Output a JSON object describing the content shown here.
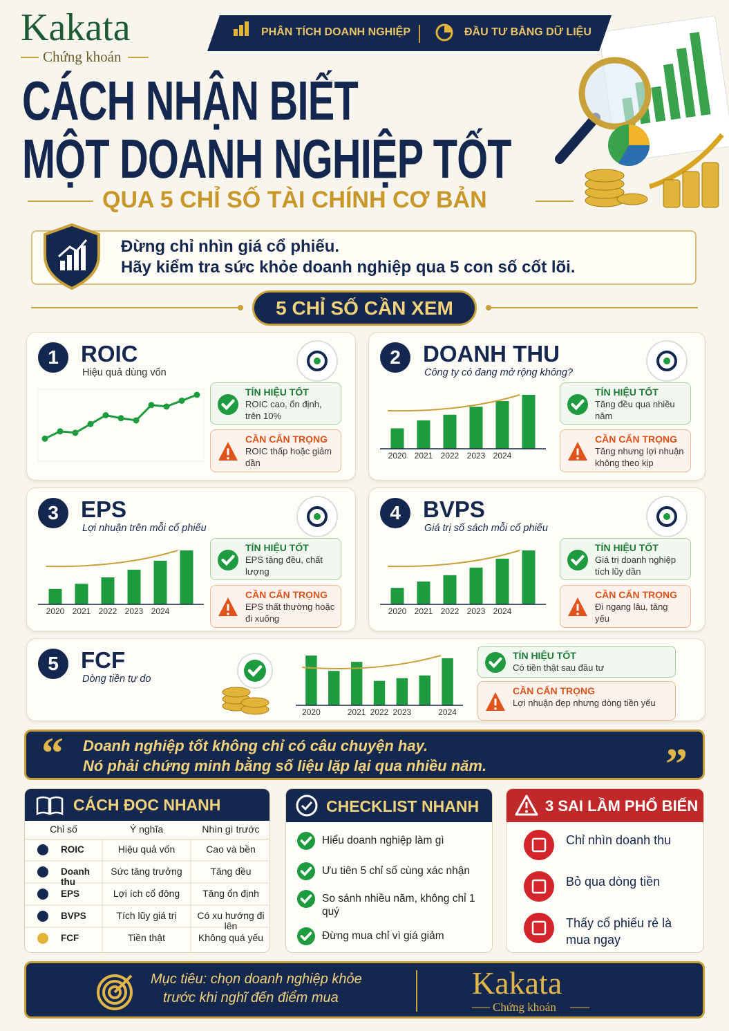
{
  "header": {
    "brand": "Kakata",
    "brand_sub": "Chứng khoán",
    "tags": [
      "PHÂN TÍCH DOANH NGHIỆP",
      "ĐẦU TƯ BẰNG DỮ LIỆU"
    ],
    "title_lines": [
      "CÁCH NHẬN BIẾT",
      "MỘT DOANH NGHIỆP TỐT"
    ],
    "subtitle": "QUA 5 CHỈ SỐ TÀI CHÍNH CƠ BẢN"
  },
  "intro": [
    "Đừng chỉ nhìn giá cổ phiếu.",
    "Hãy kiểm tra sức khỏe doanh nghiệp qua 5 con số cốt lõi."
  ],
  "section_title": "5 CHỈ SỐ CẦN XEM",
  "metrics": [
    {
      "number": 1,
      "name": "ROIC",
      "desc": "Hiệu quả dùng vốn",
      "good_title": "TÍN HIỆU TỐT",
      "good_text": "ROIC cao, ổn định, trên 10%",
      "warn_title": "CẦN CẨN TRỌNG",
      "warn_text": "ROIC thấp hoặc giảm dần",
      "chart": {
        "type": "line",
        "values": [
          3,
          4,
          3.8,
          5,
          6.2,
          5.8,
          5.5,
          7.6,
          7.4,
          8.2,
          9
        ]
      }
    },
    {
      "number": 2,
      "name": "DOANH THU",
      "desc": "Công ty có đang mở rộng không?",
      "good_title": "TÍN HIỆU TỐT",
      "good_text": "Tăng đều qua nhiều năm",
      "warn_title": "CẦN CẨN TRỌNG",
      "warn_text": "Tăng nhưng lợi nhuận không theo kịp",
      "chart": {
        "type": "bar",
        "categories": [
          "2020",
          "2021",
          "2022",
          "2023",
          "2024",
          null
        ],
        "values": [
          36,
          50,
          60,
          74,
          84,
          95
        ]
      }
    },
    {
      "number": 3,
      "name": "EPS",
      "desc": "Lợi nhuận trên mỗi cổ phiếu",
      "good_title": "TÍN HIỆU TỐT",
      "good_text": "EPS tăng đều, chất lượng",
      "warn_title": "CẦN CẨN TRỌNG",
      "warn_text": "EPS thất thường hoặc đi xuống",
      "chart": {
        "type": "bar",
        "categories": [
          "2020",
          "2021",
          "2022",
          "2023",
          "2024",
          null
        ],
        "values": [
          24,
          32,
          42,
          54,
          68,
          84
        ]
      }
    },
    {
      "number": 4,
      "name": "BVPS",
      "desc": "Giá trị sổ sách mỗi cổ phiếu",
      "good_title": "TÍN HIỆU TỐT",
      "good_text": "Giá trị doanh nghiệp tích lũy dần",
      "warn_title": "CẦN CẨN TRỌNG",
      "warn_text": "Đi ngang lâu, tăng yếu",
      "chart": {
        "type": "bar",
        "categories": [
          "2020",
          "2021",
          "2022",
          "2023",
          "2024",
          null
        ],
        "values": [
          26,
          36,
          46,
          58,
          72,
          85
        ]
      }
    },
    {
      "number": 5,
      "name": "FCF",
      "desc": "Dòng tiền tự do",
      "good_title": "TÍN HIỆU TỐT",
      "good_text": "Có tiền thật sau đầu tư",
      "warn_title": "CẦN CẨN TRỌNG",
      "warn_text": "Lợi nhuận đẹp nhưng dòng tiền yếu",
      "chart": {
        "type": "bar",
        "categories": [
          "2020",
          null,
          "2021",
          "2022",
          "2023",
          null,
          "2024"
        ],
        "values": [
          55,
          38,
          48,
          27,
          30,
          33,
          52
        ]
      }
    }
  ],
  "quote": {
    "marks": [
      "“",
      "”"
    ],
    "lines": [
      "Doanh nghiệp tốt không chỉ có câu chuyện hay.",
      "Nó phải chứng minh bằng số liệu lặp lại qua nhiều năm."
    ]
  },
  "quick_read": {
    "title": "CÁCH ĐỌC NHANH",
    "headers": [
      "Chỉ số",
      "Ý nghĩa",
      "Nhìn gì trước"
    ],
    "rows": [
      [
        "ROIC",
        "Hiệu quả vốn",
        "Cao và bền"
      ],
      [
        "Doanh thu",
        "Sức tăng trưởng",
        "Tăng đều"
      ],
      [
        "EPS",
        "Lợi ích cổ đông",
        "Tăng ổn định"
      ],
      [
        "BVPS",
        "Tích lũy giá trị",
        "Có xu hướng đi lên"
      ],
      [
        "FCF",
        "Tiền thật",
        "Không quá yếu"
      ]
    ]
  },
  "checklist": {
    "title": "CHECKLIST NHANH",
    "items": [
      "Hiểu doanh nghiệp làm gì",
      "Ưu tiên 5 chỉ số cùng xác nhận",
      "So sánh nhiều năm, không chỉ 1 quý",
      "Đừng mua chỉ vì giá giảm"
    ]
  },
  "mistakes": {
    "title": "3 SAI LẦM PHỔ BIẾN",
    "items": [
      "Chỉ nhìn doanh thu",
      "Bỏ qua dòng tiền",
      "Thấy cổ phiếu rẻ là mua ngay"
    ]
  },
  "footer": {
    "lines": [
      "Mục tiêu: chọn doanh nghiệp khỏe",
      "trước khi nghĩ đến điểm mua"
    ],
    "brand": "Kakata",
    "brand_sub": "Chứng khoán"
  }
}
